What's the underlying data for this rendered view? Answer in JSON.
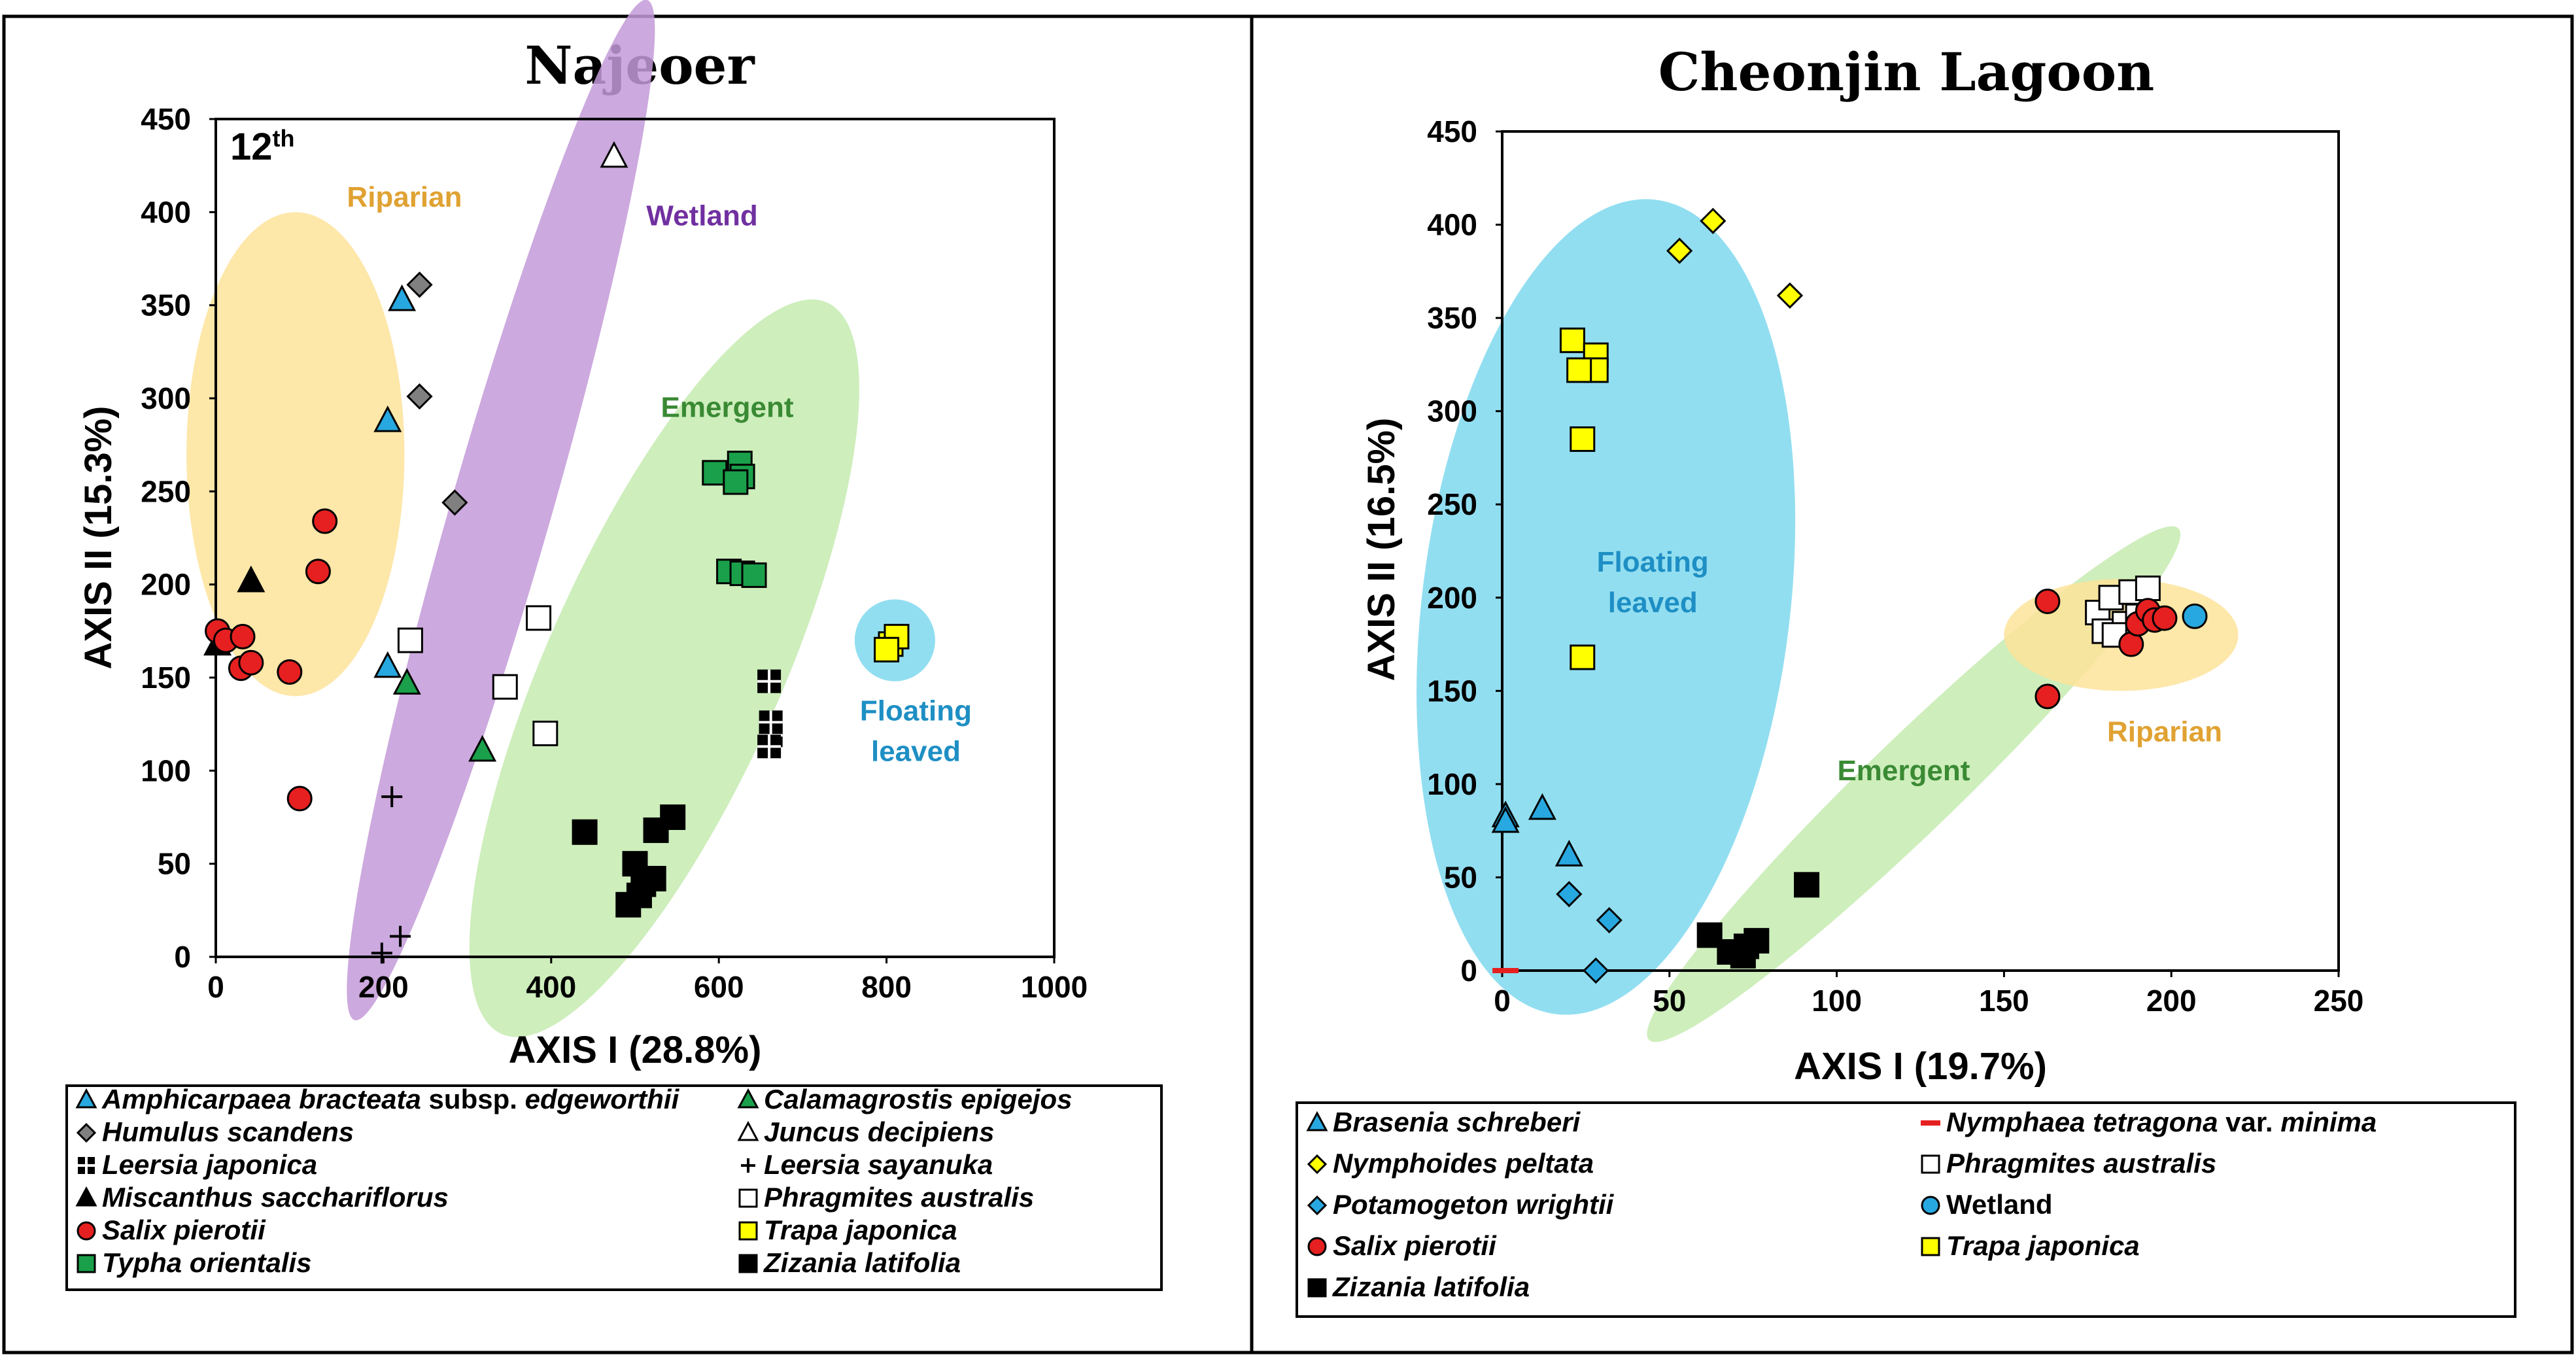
{
  "colors": {
    "riparian": "#fde39a",
    "wetland": "#c39ad8",
    "emergent": "#c6ebb0",
    "floating": "#7fd8ef",
    "riparian_text": "#e0a232",
    "wetland_text": "#7030a0",
    "emergent_text": "#3a8a34",
    "floating_text": "#1e8fc4",
    "blue": "#28a8e0",
    "grey": "#808080",
    "red": "#e62020",
    "green": "#1aa04a",
    "yellow": "#ffff00",
    "black": "#000000",
    "white": "#ffffff"
  },
  "chart_data": [
    {
      "type": "scatter",
      "title": "Najeoer",
      "panel_label": "12",
      "panel_label_sup": "th",
      "xlabel": "AXIS I (28.8%)",
      "ylabel": "AXIS II (15.3%)",
      "xlim": [
        0,
        1000
      ],
      "ylim": [
        0,
        450
      ],
      "xticks": [
        "0",
        "200",
        "400",
        "600",
        "800",
        "1000"
      ],
      "yticks": [
        "0",
        "50",
        "100",
        "150",
        "200",
        "250",
        "300",
        "350",
        "400",
        "450"
      ],
      "groups": [
        {
          "key": "riparian",
          "label": "Riparian",
          "center": [
            95,
            270
          ],
          "semi_axes": [
            130,
            130
          ],
          "rotation_deg": 0
        },
        {
          "key": "wetland",
          "label": "Wetland",
          "center": [
            340,
            240
          ],
          "semi_axes": [
            285,
            60
          ],
          "rotation_deg": 74
        },
        {
          "key": "emergent",
          "label": "Emergent",
          "center": [
            535,
            155
          ],
          "semi_axes": [
            215,
            140
          ],
          "rotation_deg": 66
        },
        {
          "key": "floating",
          "label": "Floating\nleaved",
          "center": [
            810,
            170
          ],
          "semi_axes": [
            48,
            22
          ],
          "rotation_deg": 0
        }
      ],
      "group_labels": [
        {
          "key": "riparian",
          "lines": [
            "Riparian"
          ],
          "at": [
            225,
            403
          ]
        },
        {
          "key": "wetland",
          "lines": [
            "Wetland"
          ],
          "at": [
            580,
            393
          ]
        },
        {
          "key": "emergent",
          "lines": [
            "Emergent"
          ],
          "at": [
            610,
            290
          ]
        },
        {
          "key": "floating",
          "lines": [
            "Floating",
            "leaved"
          ],
          "at": [
            835,
            127
          ]
        }
      ],
      "series": [
        {
          "name": "Amphicarpaea bracteata",
          "suffix": " subsp. ",
          "suffix2": "edgeworthii",
          "marker": "triangle",
          "fill": "#28a8e0",
          "points": [
            [
              222,
              353
            ],
            [
              205,
              288
            ],
            [
              205,
              156
            ]
          ]
        },
        {
          "name": "Calamagrostis epigejos",
          "marker": "triangle",
          "fill": "#1aa04a",
          "points": [
            [
              228,
              147
            ],
            [
              318,
              111
            ]
          ]
        },
        {
          "name": "Humulus scandens",
          "marker": "diamond",
          "fill": "#808080",
          "points": [
            [
              243,
              361
            ],
            [
              243,
              301
            ],
            [
              285,
              244
            ]
          ]
        },
        {
          "name": "Juncus decipiens",
          "marker": "triangle",
          "fill": "#ffffff",
          "points": [
            [
              475,
              430
            ]
          ]
        },
        {
          "name": "Leersia japonica",
          "marker": "cross-square",
          "fill": "#000000",
          "points": [
            [
              660,
              148
            ],
            [
              662,
              126
            ],
            [
              662,
              119
            ],
            [
              660,
              113
            ]
          ]
        },
        {
          "name": "Leersia sayanuka",
          "marker": "plus",
          "fill": "#000000",
          "points": [
            [
              210,
              86
            ],
            [
              220,
              11
            ],
            [
              198,
              2
            ]
          ]
        },
        {
          "name": "Miscanthus sacchariflorus",
          "marker": "triangle",
          "fill": "#000000",
          "points": [
            [
              42,
              202
            ],
            [
              2,
              168
            ]
          ]
        },
        {
          "name": "Phragmites australis",
          "marker": "square",
          "fill": "#ffffff",
          "points": [
            [
              232,
              170
            ],
            [
              385,
              182
            ],
            [
              345,
              145
            ],
            [
              393,
              120
            ]
          ]
        },
        {
          "name": "Salix pierotii",
          "marker": "circle",
          "fill": "#e62020",
          "points": [
            [
              130,
              234
            ],
            [
              122,
              207
            ],
            [
              2,
              175
            ],
            [
              12,
              170
            ],
            [
              32,
              172
            ],
            [
              30,
              155
            ],
            [
              42,
              158
            ],
            [
              88,
              153
            ],
            [
              100,
              85
            ]
          ]
        },
        {
          "name": "Trapa japonica",
          "marker": "square",
          "fill": "#ffff00",
          "points": [
            [
              805,
              168
            ],
            [
              812,
              172
            ],
            [
              800,
              165
            ]
          ]
        },
        {
          "name": "Typha orientalis",
          "marker": "square",
          "fill": "#1aa04a",
          "points": [
            [
              595,
              260
            ],
            [
              625,
              265
            ],
            [
              628,
              258
            ],
            [
              620,
              255
            ],
            [
              612,
              207
            ],
            [
              628,
              206
            ],
            [
              642,
              205
            ]
          ]
        },
        {
          "name": "Zizania latifolia",
          "marker": "square",
          "fill": "#000000",
          "points": [
            [
              440,
              67
            ],
            [
              525,
              68
            ],
            [
              545,
              75
            ],
            [
              500,
              50
            ],
            [
              522,
              42
            ],
            [
              510,
              39
            ],
            [
              505,
              33
            ],
            [
              492,
              28
            ]
          ]
        }
      ]
    },
    {
      "type": "scatter",
      "title": "Cheonjin Lagoon",
      "xlabel": "AXIS I (19.7%)",
      "ylabel": "AXIS II (16.5%)",
      "xlim": [
        0,
        250
      ],
      "ylim": [
        0,
        450
      ],
      "xticks": [
        "0",
        "50",
        "100",
        "150",
        "200",
        "250"
      ],
      "yticks": [
        "0",
        "50",
        "100",
        "150",
        "200",
        "250",
        "300",
        "350",
        "400",
        "450"
      ],
      "groups": [
        {
          "key": "floating",
          "label": "Floating\nleaved",
          "center": [
            31,
            195
          ],
          "semi_axes": [
            220,
            55
          ],
          "rotation_deg": 83
        },
        {
          "key": "emergent",
          "label": "Emergent",
          "center": [
            123,
            100
          ],
          "semi_axes": [
            110,
            25
          ],
          "rotation_deg": 44
        },
        {
          "key": "riparian",
          "label": "Riparian",
          "center": [
            185,
            180
          ],
          "semi_axes": [
            35,
            30
          ],
          "rotation_deg": 0
        }
      ],
      "group_labels": [
        {
          "key": "floating",
          "lines": [
            "Floating",
            "leaved"
          ],
          "at": [
            45,
            214
          ]
        },
        {
          "key": "emergent",
          "lines": [
            "Emergent"
          ],
          "at": [
            120,
            102
          ]
        },
        {
          "key": "riparian",
          "lines": [
            "Riparian"
          ],
          "at": [
            198,
            123
          ]
        }
      ],
      "series": [
        {
          "name": "Brasenia schreberi",
          "marker": "triangle",
          "fill": "#28a8e0",
          "points": [
            [
              1,
              83
            ],
            [
              1,
              80
            ],
            [
              12,
              87
            ],
            [
              20,
              62
            ]
          ]
        },
        {
          "name": "Nymphaea tetragona",
          "suffix": " var. ",
          "suffix2": "minima",
          "marker": "dash",
          "fill": "#e62020",
          "points": [
            [
              1,
              0
            ]
          ]
        },
        {
          "name": "Nymphoides peltata",
          "marker": "diamond",
          "fill": "#ffff00",
          "points": [
            [
              63,
              402
            ],
            [
              53,
              386
            ],
            [
              86,
              362
            ]
          ]
        },
        {
          "name": "Phragmites australis",
          "marker": "square",
          "fill": "#ffffff",
          "points": [
            [
              178,
              192
            ],
            [
              182,
              200
            ],
            [
              188,
              203
            ],
            [
              193,
              205
            ],
            [
              180,
              182
            ],
            [
              186,
              186
            ],
            [
              190,
              190
            ],
            [
              183,
              180
            ]
          ]
        },
        {
          "name": "Potamogeton wrightii",
          "marker": "diamond",
          "fill": "#28a8e0",
          "points": [
            [
              20,
              41
            ],
            [
              32,
              27
            ],
            [
              28,
              0
            ]
          ]
        },
        {
          "name": "Wetland",
          "normal": true,
          "marker": "circle",
          "fill": "#28a8e0",
          "points": [
            [
              207,
              190
            ]
          ]
        },
        {
          "name": "Salix pierotii",
          "marker": "circle",
          "fill": "#e62020",
          "points": [
            [
              163,
              198
            ],
            [
              163,
              147
            ],
            [
              188,
              175
            ],
            [
              190,
              186
            ],
            [
              193,
              193
            ],
            [
              195,
              188
            ],
            [
              198,
              189
            ]
          ]
        },
        {
          "name": "Trapa japonica",
          "marker": "square",
          "fill": "#ffff00",
          "points": [
            [
              21,
              338
            ],
            [
              28,
              330
            ],
            [
              28,
              322
            ],
            [
              23,
              322
            ],
            [
              24,
              285
            ],
            [
              24,
              168
            ]
          ]
        },
        {
          "name": "Zizania latifolia",
          "marker": "square",
          "fill": "#000000",
          "points": [
            [
              62,
              19
            ],
            [
              68,
              10
            ],
            [
              72,
              8
            ],
            [
              73,
              13
            ],
            [
              76,
              16
            ],
            [
              91,
              46
            ]
          ]
        }
      ]
    }
  ]
}
